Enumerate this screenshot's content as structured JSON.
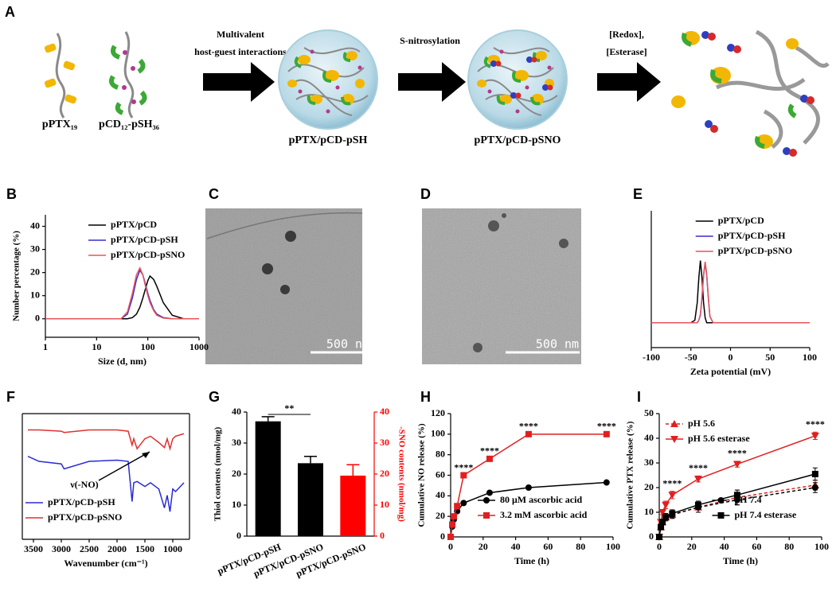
{
  "schematic": {
    "panel": "A",
    "left_labels": [
      "pPTX₁₉",
      "pCD₁₂-pSH₃₆"
    ],
    "steps": [
      [
        "Multivalent",
        "host-guest interactions"
      ],
      [
        "S-nitrosylation"
      ],
      [
        "[Redox],",
        "[Esterase]"
      ]
    ],
    "products": [
      "pPTX/pCD-pSH",
      "pPTX/pCD-pSNO"
    ]
  },
  "images": [
    {
      "panel": "C",
      "scale_bar": "500 nm"
    },
    {
      "panel": "D",
      "scale_bar": "500 nm"
    }
  ],
  "chart_data": [
    {
      "type": "line",
      "panel": "B",
      "xscale": "log",
      "xlim": [
        1,
        1000
      ],
      "xticks": [
        1,
        10,
        100,
        1000
      ],
      "ylim": [
        -8,
        45
      ],
      "yticks": [
        0,
        10,
        20,
        30,
        40
      ],
      "xlabel": "Size (d, nm)",
      "ylabel": "Number percentage (%)",
      "legend": "upper right",
      "x": [
        1,
        10,
        30,
        40,
        50,
        60,
        70,
        80,
        90,
        100,
        110,
        130,
        150,
        200,
        300,
        500,
        1000
      ],
      "series": [
        {
          "name": "pPTX/pCD",
          "color": "#000000",
          "values": [
            0,
            0,
            0,
            0,
            0.5,
            2,
            5,
            9,
            13,
            16.5,
            18.5,
            17,
            14,
            7,
            1.5,
            0,
            0
          ]
        },
        {
          "name": "pPTX/pCD-pSH",
          "color": "#3b2fc9",
          "values": [
            0,
            0,
            0,
            2,
            9,
            17,
            21,
            19,
            15,
            11,
            8,
            4,
            2,
            0.5,
            0,
            0,
            0
          ]
        },
        {
          "name": "pPTX/pCD-pSNO",
          "color": "#e8545a",
          "values": [
            0,
            0,
            0,
            3,
            11,
            19,
            22,
            19,
            14,
            10,
            7,
            3.5,
            1.5,
            0.3,
            0,
            0,
            0
          ]
        }
      ]
    },
    {
      "type": "line",
      "panel": "E",
      "xlim": [
        -100,
        100
      ],
      "xticks": [
        -100,
        -50,
        0,
        50,
        100
      ],
      "ylim": [
        -2,
        9
      ],
      "xlabel": "Zeta potential (mV)",
      "legend": "upper right",
      "x": [
        -100,
        -50,
        -45,
        -42,
        -40,
        -38,
        -36,
        -34,
        -32,
        -30,
        -28,
        -26,
        -22,
        0,
        100
      ],
      "series": [
        {
          "name": "pPTX/pCD",
          "color": "#000000",
          "values": [
            0,
            0,
            0.2,
            1.6,
            3.6,
            5,
            3.6,
            1.6,
            0.4,
            0,
            0,
            0,
            0,
            0,
            0
          ]
        },
        {
          "name": "pPTX/pCD-pSH",
          "color": "#3b2fc9",
          "values": [
            0,
            0,
            0,
            0,
            0.2,
            0.6,
            2,
            3.8,
            4.8,
            3.8,
            2,
            0.5,
            0,
            0,
            0
          ]
        },
        {
          "name": "pPTX/pCD-pSNO",
          "color": "#e8545a",
          "values": [
            0,
            0,
            0,
            0,
            0.2,
            0.7,
            2.1,
            3.9,
            4.9,
            3.9,
            2.1,
            0.5,
            0,
            0,
            0
          ]
        }
      ]
    },
    {
      "type": "line",
      "panel": "F",
      "frame": true,
      "xlim": [
        3700,
        700
      ],
      "xticks": [
        3500,
        3000,
        2500,
        2000,
        1500,
        1000
      ],
      "ylim": [
        0,
        100
      ],
      "xlabel": "Wavenumber (cm⁻¹)",
      "legend": "lower left",
      "annotation": "ν(-NO)",
      "x": [
        3600,
        3400,
        3000,
        2950,
        2500,
        2000,
        1800,
        1730,
        1700,
        1640,
        1500,
        1400,
        1250,
        1150,
        1100,
        1050,
        1000,
        950,
        800
      ],
      "series": [
        {
          "name": "pPTX/pCD-pSH",
          "color": "#2b2bd6",
          "values": [
            66,
            62,
            60,
            56,
            62,
            63,
            62,
            30,
            45,
            46,
            42,
            45,
            40,
            25,
            35,
            22,
            40,
            38,
            45
          ]
        },
        {
          "name": "pPTX/pCD-pSNO",
          "color": "#e03030",
          "values": [
            87,
            87,
            86,
            85,
            87,
            87,
            86,
            75,
            80,
            72,
            80,
            82,
            77,
            73,
            80,
            72,
            80,
            82,
            84
          ]
        }
      ]
    },
    {
      "type": "bar",
      "panel": "G",
      "categories": [
        "pPTX/pCD-pSH",
        "pPTX/pCD-pSNO",
        "pPTX/pCD-pSNO"
      ],
      "ylim": [
        0,
        40
      ],
      "yticks": [
        0,
        10,
        20,
        30,
        40
      ],
      "y2lim": [
        0,
        40
      ],
      "y2ticks": [
        0,
        10,
        20,
        30,
        40
      ],
      "ylabel": "Thiol contents (nmol/mg)",
      "y2label": "-SNO contents (nmol/mg)",
      "series": [
        {
          "color": "#000000",
          "values": [
            37,
            23.5,
            null
          ],
          "errors": [
            1.5,
            2.2,
            null
          ]
        },
        {
          "color": "#ff0000",
          "axis": "y2",
          "values": [
            null,
            null,
            19.5
          ],
          "errors": [
            null,
            null,
            3.5
          ]
        }
      ],
      "significance": {
        "text": "**",
        "between": [
          0,
          1
        ]
      }
    },
    {
      "type": "line",
      "panel": "H",
      "xlim": [
        0,
        100
      ],
      "xticks": [
        0,
        20,
        40,
        60,
        80,
        100
      ],
      "ylim": [
        0,
        120
      ],
      "yticks": [
        0,
        20,
        40,
        60,
        80,
        100,
        120
      ],
      "xlabel": "Time (h)",
      "ylabel": "Cumulative NO release (%)",
      "legend": "lower right",
      "x": [
        0,
        1,
        2,
        4,
        8,
        24,
        48,
        96
      ],
      "series": [
        {
          "name": "80 μM ascorbic acid",
          "color": "#000000",
          "marker": "circle",
          "values": [
            0,
            10,
            17,
            25,
            33,
            43,
            48,
            53
          ]
        },
        {
          "name": "3.2 mM ascorbic acid",
          "color": "#e02020",
          "marker": "square",
          "values": [
            0,
            12,
            20,
            30,
            60,
            76,
            100,
            100
          ]
        }
      ],
      "annotations": [
        {
          "text": "****",
          "x": 8
        },
        {
          "text": "****",
          "x": 24
        },
        {
          "text": "****",
          "x": 48
        },
        {
          "text": "****",
          "x": 96
        }
      ]
    },
    {
      "type": "line",
      "panel": "I",
      "xlim": [
        0,
        100
      ],
      "xticks": [
        0,
        20,
        40,
        60,
        80,
        100
      ],
      "ylim": [
        0,
        50
      ],
      "yticks": [
        0,
        10,
        20,
        30,
        40,
        50
      ],
      "xlabel": "Time (h)",
      "ylabel": "Cumulative PTX release (%)",
      "x": [
        0,
        1,
        2,
        4,
        8,
        24,
        48,
        96
      ],
      "series": [
        {
          "name": "pH 5.6",
          "color": "#e02020",
          "marker": "triangle-up",
          "dashed": true,
          "legend": "upper left",
          "values": [
            0,
            4,
            6,
            8,
            9,
            12,
            16,
            21
          ],
          "errors": [
            0,
            0.5,
            1,
            1,
            1.5,
            2,
            3,
            2
          ]
        },
        {
          "name": "pH 5.6 esterase",
          "color": "#e02020",
          "marker": "triangle-down",
          "legend": "upper left",
          "values": [
            0,
            6,
            10,
            13,
            17,
            23.5,
            29.5,
            41
          ],
          "errors": [
            0,
            0.5,
            1,
            1.5,
            1.5,
            1.2,
            1.2,
            1.5
          ]
        },
        {
          "name": "pH 7.4",
          "color": "#000000",
          "marker": "circle",
          "dashed": true,
          "legend": "lower right",
          "values": [
            0,
            4,
            6,
            8,
            9,
            12,
            15,
            20
          ],
          "errors": [
            0,
            0.5,
            1,
            1,
            1.5,
            2,
            2,
            2
          ]
        },
        {
          "name": "pH 7.4 esterase",
          "color": "#000000",
          "marker": "square",
          "legend": "lower right",
          "values": [
            0,
            4,
            6,
            8,
            9.5,
            13,
            17,
            25.5
          ],
          "errors": [
            0,
            0.5,
            1,
            1.5,
            1.5,
            1.5,
            2,
            2.5
          ]
        }
      ],
      "annotations": [
        {
          "text": "****",
          "x": 8
        },
        {
          "text": "****",
          "x": 24
        },
        {
          "text": "****",
          "x": 48
        },
        {
          "text": "****",
          "x": 96
        }
      ]
    }
  ]
}
